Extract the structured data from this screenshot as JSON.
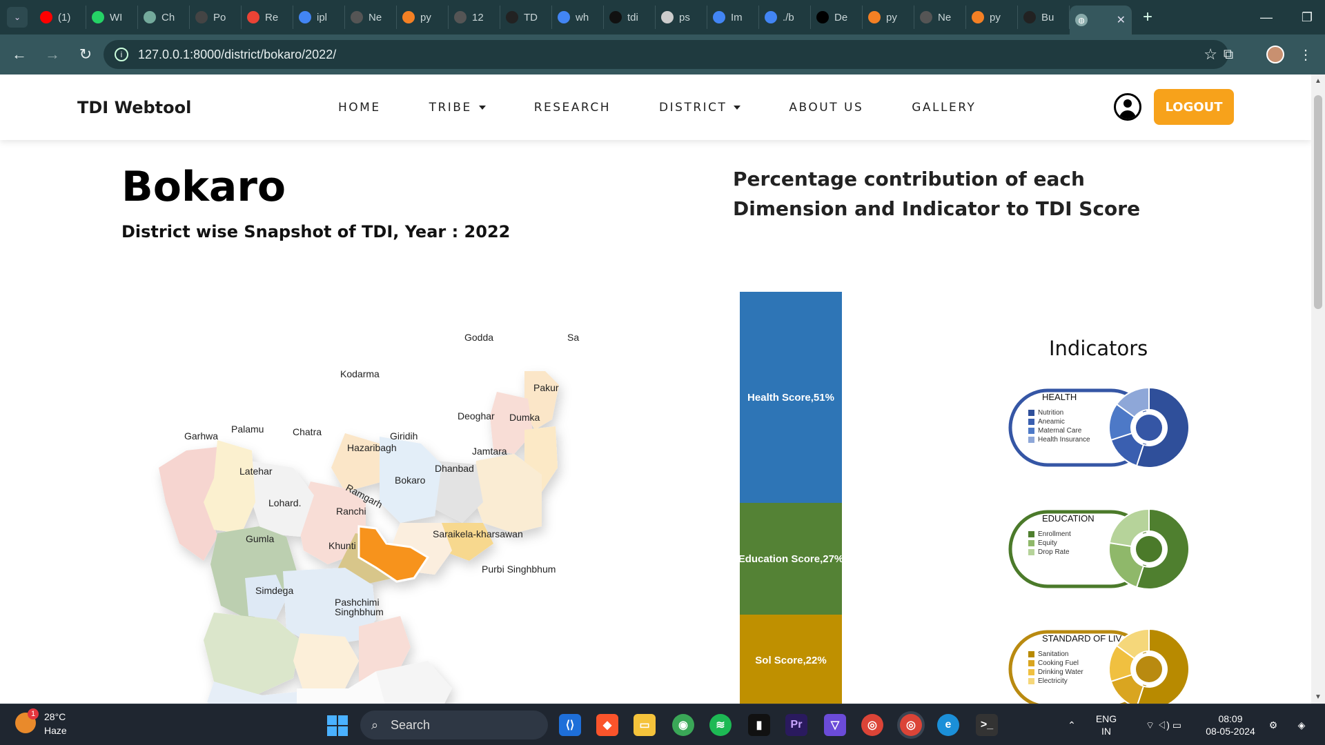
{
  "browser": {
    "tabs": [
      {
        "label": "(1)",
        "color": "#ff0000"
      },
      {
        "label": "WI",
        "color": "#25d366"
      },
      {
        "label": "Ch",
        "color": "#74aa9c"
      },
      {
        "label": "Po",
        "color": "#444444"
      },
      {
        "label": "Re",
        "color": "#ea4335"
      },
      {
        "label": "ipl",
        "color": "#4285f4"
      },
      {
        "label": "Ne",
        "color": "#555555"
      },
      {
        "label": "py",
        "color": "#f48024"
      },
      {
        "label": "12",
        "color": "#555555"
      },
      {
        "label": "TD",
        "color": "#222222"
      },
      {
        "label": "wh",
        "color": "#4285f4"
      },
      {
        "label": "tdi",
        "color": "#111111"
      },
      {
        "label": "ps",
        "color": "#cccccc"
      },
      {
        "label": "Im",
        "color": "#4285f4"
      },
      {
        "label": "./b",
        "color": "#4285f4"
      },
      {
        "label": "De",
        "color": "#000000"
      },
      {
        "label": "py",
        "color": "#f48024"
      },
      {
        "label": "Ne",
        "color": "#555555"
      },
      {
        "label": "py",
        "color": "#f48024"
      },
      {
        "label": "Bu",
        "color": "#222222"
      }
    ],
    "url": "127.0.0.1:8000/district/bokaro/2022/"
  },
  "site": {
    "brand": "TDI Webtool",
    "menu": [
      "HOME",
      "TRIBE",
      "RESEARCH",
      "DISTRICT",
      "ABOUT US",
      "GALLERY"
    ],
    "logout": "LOGOUT"
  },
  "district": {
    "name": "Bokaro",
    "subtitle": "District wise Snapshot of TDI, Year : 2022"
  },
  "map_labels": [
    "Godda",
    "Sahibga",
    "Kodarma",
    "Pakur",
    "Deoghar",
    "Dumka",
    "Garhwa",
    "Palamu",
    "Chatra",
    "Giridih",
    "Hazaribagh",
    "Jamtara",
    "Latehar",
    "Dhanbad",
    "Bokaro",
    "Ramgarh",
    "Lohard.",
    "Ranchi",
    "Saraikela-kharsawan",
    "Gumla",
    "Khunti",
    "Purbi Singhbhum",
    "Simdega",
    "Pashchimi",
    "Singhbhum"
  ],
  "chart_heading": "Percentage contribution of each Dimension and Indicator to TDI Score",
  "chart_data": {
    "type": "bar",
    "categories": [
      "Health Score",
      "Education Score",
      "Sol Score"
    ],
    "values": [
      51,
      27,
      22
    ],
    "labels": [
      "Health Score,51%",
      "Education Score,27%",
      "Sol Score,22%"
    ],
    "colors": [
      "#2e75b6",
      "#548235",
      "#bf9000"
    ]
  },
  "indicators": {
    "title": "Indicators",
    "cards": [
      {
        "name": "HEALTH",
        "items": [
          "Nutrition",
          "Aneamic",
          "Maternal Care",
          "Health Insurance"
        ],
        "colors": [
          "#2f4f9a",
          "#3a5fb0",
          "#4d79c7",
          "#8ea7d8"
        ],
        "ring": "#3556a5"
      },
      {
        "name": "EDUCATION",
        "items": [
          "Enrollment",
          "Equity",
          "Drop Rate"
        ],
        "colors": [
          "#4f7f2f",
          "#8fb86a",
          "#b6d39a"
        ],
        "ring": "#4b7a2a"
      },
      {
        "name": "STANDARD OF LIV",
        "items": [
          "Sanitation",
          "Cooking Fuel",
          "Drinking Water",
          "Electricity"
        ],
        "colors": [
          "#b88a00",
          "#d9a520",
          "#f0c040",
          "#f5d77a"
        ],
        "ring": "#b98a10"
      }
    ]
  },
  "taskbar": {
    "temp": "28°C",
    "weather": "Haze",
    "badge": "1",
    "search": "Search",
    "lang1": "ENG",
    "lang2": "IN",
    "time": "08:09",
    "date": "08-05-2024"
  }
}
